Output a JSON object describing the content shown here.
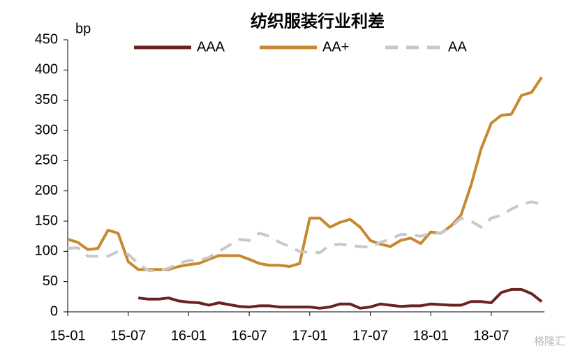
{
  "chart_data": {
    "type": "line",
    "title": "纺织服装行业利差",
    "y_label": "bp",
    "watermark": "格隆汇",
    "categories": [
      "15-01",
      null,
      null,
      null,
      null,
      null,
      "15-07",
      null,
      null,
      null,
      null,
      null,
      "16-01",
      null,
      null,
      null,
      null,
      null,
      "16-07",
      null,
      null,
      null,
      null,
      null,
      "17-01",
      null,
      null,
      null,
      null,
      null,
      "17-07",
      null,
      null,
      null,
      null,
      null,
      "18-01",
      null,
      null,
      null,
      null,
      null,
      "18-07",
      null,
      null,
      null,
      null,
      null
    ],
    "series": [
      {
        "name": "AAA",
        "color": "#6b2320",
        "dashed": false,
        "values": [
          null,
          null,
          null,
          null,
          null,
          null,
          null,
          23,
          21,
          21,
          23,
          18,
          16,
          15,
          11,
          15,
          12,
          9,
          8,
          10,
          10,
          8,
          8,
          8,
          8,
          6,
          8,
          13,
          13,
          6,
          8,
          13,
          11,
          9,
          10,
          10,
          13,
          12,
          11,
          11,
          17,
          17,
          15,
          32,
          37,
          37,
          30,
          17
        ]
      },
      {
        "name": "AA+",
        "color": "#c8882f",
        "dashed": false,
        "values": [
          120,
          115,
          103,
          105,
          135,
          130,
          83,
          70,
          70,
          70,
          70,
          75,
          78,
          80,
          87,
          93,
          93,
          93,
          87,
          80,
          77,
          77,
          75,
          80,
          155,
          155,
          140,
          148,
          153,
          140,
          118,
          112,
          108,
          118,
          122,
          113,
          132,
          130,
          142,
          160,
          210,
          270,
          312,
          325,
          327,
          358,
          363,
          388
        ]
      },
      {
        "name": "AA",
        "color": "#c8c8c8",
        "dashed": true,
        "values": [
          105,
          106,
          92,
          92,
          92,
          100,
          95,
          80,
          68,
          68,
          72,
          80,
          85,
          85,
          90,
          100,
          110,
          120,
          118,
          130,
          125,
          115,
          108,
          100,
          98,
          98,
          110,
          112,
          110,
          108,
          107,
          115,
          120,
          128,
          128,
          125,
          130,
          130,
          140,
          155,
          150,
          140,
          155,
          160,
          170,
          178,
          182,
          178
        ]
      }
    ],
    "ylim": [
      0,
      450
    ],
    "yticks": [
      0,
      50,
      100,
      150,
      200,
      250,
      300,
      350,
      400,
      450
    ],
    "legend": "top"
  }
}
